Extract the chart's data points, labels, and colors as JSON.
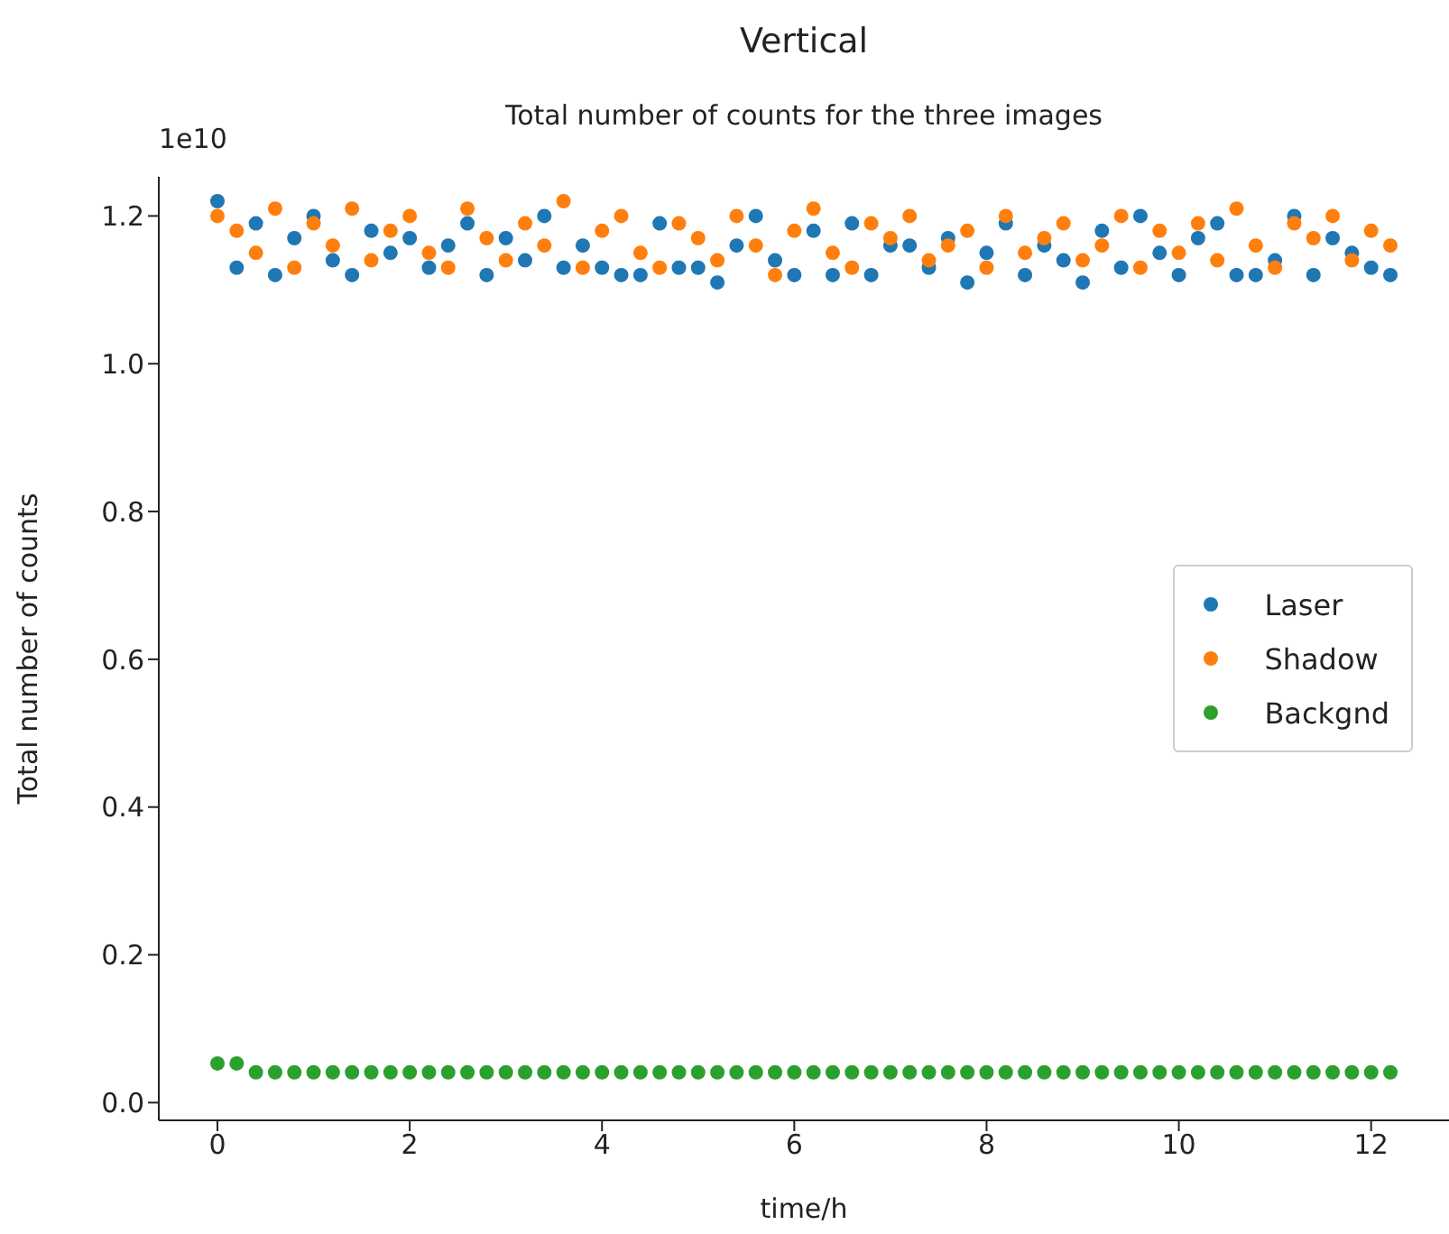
{
  "chart_data": {
    "type": "scatter",
    "title": "Vertical",
    "subtitle": "Total number of counts for the three images",
    "xlabel": "time/h",
    "ylabel": "Total number of counts",
    "annotations": [
      "1e10"
    ],
    "x": [
      0,
      0.2,
      0.4,
      0.6,
      0.8,
      1,
      1.2,
      1.4,
      1.6,
      1.8,
      2,
      2.2,
      2.4,
      2.6,
      2.8,
      3,
      3.2,
      3.4,
      3.6,
      3.8,
      4,
      4.2,
      4.4,
      4.6,
      4.8,
      5,
      5.2,
      5.4,
      5.6,
      5.8,
      6,
      6.2,
      6.4,
      6.6,
      6.8,
      7,
      7.2,
      7.4,
      7.6,
      7.8,
      8,
      8.2,
      8.4,
      8.6,
      8.8,
      9,
      9.2,
      9.4,
      9.6,
      9.8,
      10,
      10.2,
      10.4,
      10.6,
      10.8,
      11,
      11.2,
      11.4,
      11.6,
      11.8,
      12,
      12.2
    ],
    "series": [
      {
        "name": "Laser",
        "color": "#1f77b4",
        "values": [
          1.22,
          1.13,
          1.19,
          1.12,
          1.17,
          1.2,
          1.14,
          1.12,
          1.18,
          1.15,
          1.17,
          1.13,
          1.16,
          1.19,
          1.12,
          1.17,
          1.14,
          1.2,
          1.13,
          1.16,
          1.13,
          1.12,
          1.12,
          1.19,
          1.13,
          1.13,
          1.11,
          1.16,
          1.2,
          1.14,
          1.12,
          1.18,
          1.12,
          1.19,
          1.12,
          1.16,
          1.16,
          1.13,
          1.17,
          1.11,
          1.15,
          1.19,
          1.12,
          1.16,
          1.14,
          1.11,
          1.18,
          1.13,
          1.2,
          1.15,
          1.12,
          1.17,
          1.19,
          1.12,
          1.12,
          1.14,
          1.2,
          1.12,
          1.17,
          1.15,
          1.13,
          1.12
        ]
      },
      {
        "name": "Shadow",
        "color": "#ff7f0e",
        "values": [
          1.2,
          1.18,
          1.15,
          1.21,
          1.13,
          1.19,
          1.16,
          1.21,
          1.14,
          1.18,
          1.2,
          1.15,
          1.13,
          1.21,
          1.17,
          1.14,
          1.19,
          1.16,
          1.22,
          1.13,
          1.18,
          1.2,
          1.15,
          1.13,
          1.19,
          1.17,
          1.14,
          1.2,
          1.16,
          1.12,
          1.18,
          1.21,
          1.15,
          1.13,
          1.19,
          1.17,
          1.2,
          1.14,
          1.16,
          1.18,
          1.13,
          1.2,
          1.15,
          1.17,
          1.19,
          1.14,
          1.16,
          1.2,
          1.13,
          1.18,
          1.15,
          1.19,
          1.14,
          1.21,
          1.16,
          1.13,
          1.19,
          1.17,
          1.2,
          1.14,
          1.18,
          1.16
        ]
      },
      {
        "name": "Backgnd",
        "color": "#2ca02c",
        "values": [
          0.053,
          0.053,
          0.041,
          0.041,
          0.041,
          0.041,
          0.041,
          0.041,
          0.041,
          0.041,
          0.041,
          0.041,
          0.041,
          0.041,
          0.041,
          0.041,
          0.041,
          0.041,
          0.041,
          0.041,
          0.041,
          0.041,
          0.041,
          0.041,
          0.041,
          0.041,
          0.041,
          0.041,
          0.041,
          0.041,
          0.041,
          0.041,
          0.041,
          0.041,
          0.041,
          0.041,
          0.041,
          0.041,
          0.041,
          0.041,
          0.041,
          0.041,
          0.041,
          0.041,
          0.041,
          0.041,
          0.041,
          0.041,
          0.041,
          0.041,
          0.041,
          0.041,
          0.041,
          0.041,
          0.041,
          0.041,
          0.041,
          0.041,
          0.041,
          0.041,
          0.041,
          0.041
        ]
      }
    ],
    "xlim": [
      -0.61,
      12.81
    ],
    "xticks": [
      0,
      2,
      4,
      6,
      8,
      10,
      12
    ],
    "ylim": [
      -0.024,
      1.253
    ],
    "yticks": [
      {
        "value": 0,
        "label": "0.0"
      },
      {
        "value": 0.2,
        "label": "0.2"
      },
      {
        "value": 0.4,
        "label": "0.4"
      },
      {
        "value": 0.6,
        "label": "0.6"
      },
      {
        "value": 0.8,
        "label": "0.8"
      },
      {
        "value": 1,
        "label": "1.0"
      },
      {
        "value": 1.2,
        "label": "1.2"
      }
    ],
    "grid": false,
    "legend": "right",
    "marker": "circle"
  }
}
